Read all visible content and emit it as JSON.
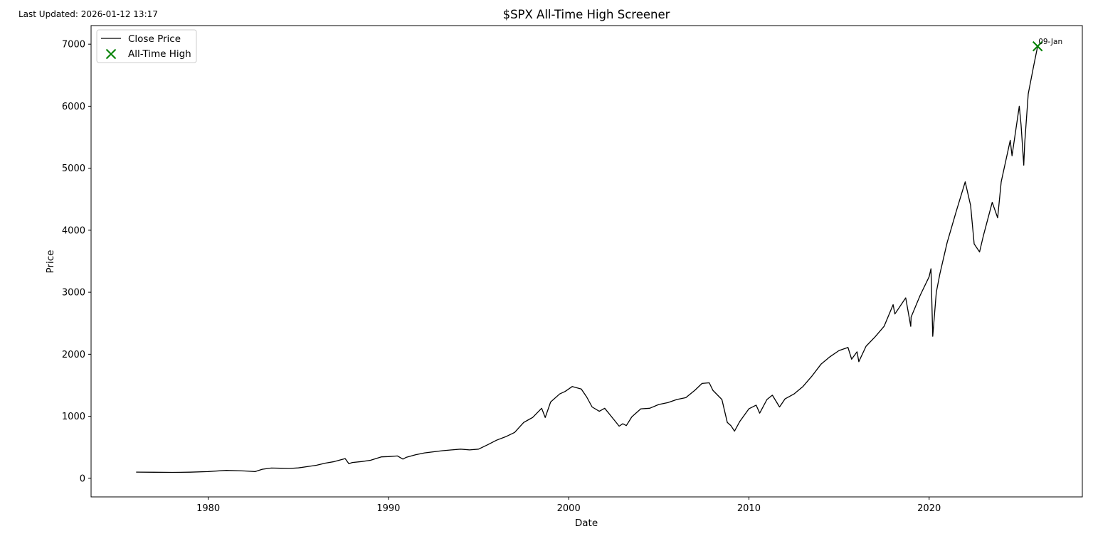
{
  "header": {
    "updated": "Last Updated: 2026-01-12 13:17"
  },
  "chart_data": {
    "type": "line",
    "title": "$SPX All-Time High Screener",
    "xlabel": "Date",
    "ylabel": "Price",
    "xlim": [
      1973.5,
      2028.5
    ],
    "ylim": [
      -300,
      7300
    ],
    "xticks": [
      1980,
      1990,
      2000,
      2010,
      2020
    ],
    "yticks": [
      0,
      1000,
      2000,
      3000,
      4000,
      5000,
      6000,
      7000
    ],
    "grid": false,
    "legend": {
      "placement": "upper-left",
      "entries": [
        {
          "label": "Close Price",
          "marker": "line",
          "color": "#000000"
        },
        {
          "label": "All-Time High",
          "marker": "x",
          "color": "#008000"
        }
      ]
    },
    "series": [
      {
        "name": "Close Price",
        "color": "#000000",
        "x": [
          1976.0,
          1977.0,
          1978.0,
          1979.0,
          1980.0,
          1981.0,
          1982.0,
          1982.6,
          1983.0,
          1983.5,
          1984.0,
          1984.5,
          1985.0,
          1985.5,
          1986.0,
          1986.5,
          1987.0,
          1987.6,
          1987.8,
          1988.0,
          1988.5,
          1989.0,
          1989.6,
          1990.0,
          1990.5,
          1990.8,
          1991.0,
          1991.5,
          1992.0,
          1993.0,
          1994.0,
          1994.5,
          1995.0,
          1995.5,
          1996.0,
          1996.5,
          1997.0,
          1997.5,
          1997.8,
          1998.0,
          1998.5,
          1998.7,
          1999.0,
          1999.5,
          1999.8,
          2000.0,
          2000.2,
          2000.7,
          2001.0,
          2001.3,
          2001.7,
          2002.0,
          2002.5,
          2002.8,
          2003.0,
          2003.2,
          2003.5,
          2004.0,
          2004.5,
          2005.0,
          2005.5,
          2006.0,
          2006.5,
          2007.0,
          2007.4,
          2007.8,
          2008.0,
          2008.5,
          2008.8,
          2009.0,
          2009.2,
          2009.5,
          2010.0,
          2010.4,
          2010.6,
          2011.0,
          2011.3,
          2011.7,
          2012.0,
          2012.5,
          2013.0,
          2013.5,
          2014.0,
          2014.5,
          2015.0,
          2015.5,
          2015.7,
          2016.0,
          2016.1,
          2016.5,
          2017.0,
          2017.5,
          2018.0,
          2018.1,
          2018.7,
          2018.98,
          2019.0,
          2019.5,
          2020.0,
          2020.1,
          2020.2,
          2020.4,
          2020.6,
          2021.0,
          2021.5,
          2022.0,
          2022.3,
          2022.5,
          2022.8,
          2023.0,
          2023.5,
          2023.8,
          2024.0,
          2024.5,
          2024.6,
          2025.0,
          2025.1,
          2025.25,
          2025.3,
          2025.5,
          2025.8,
          2026.02
        ],
        "y": [
          100,
          98,
          96,
          99,
          108,
          128,
          118,
          108,
          146,
          165,
          162,
          158,
          168,
          188,
          210,
          245,
          270,
          318,
          235,
          255,
          270,
          290,
          345,
          350,
          360,
          310,
          340,
          380,
          410,
          445,
          470,
          458,
          470,
          540,
          615,
          670,
          740,
          900,
          950,
          980,
          1130,
          980,
          1230,
          1360,
          1400,
          1440,
          1480,
          1440,
          1310,
          1150,
          1080,
          1130,
          950,
          840,
          880,
          850,
          990,
          1120,
          1130,
          1190,
          1220,
          1270,
          1300,
          1420,
          1530,
          1540,
          1420,
          1270,
          900,
          850,
          760,
          920,
          1120,
          1180,
          1050,
          1270,
          1340,
          1150,
          1280,
          1360,
          1480,
          1650,
          1840,
          1960,
          2060,
          2110,
          1920,
          2040,
          1880,
          2130,
          2280,
          2450,
          2800,
          2650,
          2910,
          2450,
          2600,
          2950,
          3250,
          3380,
          2290,
          3000,
          3300,
          3800,
          4300,
          4780,
          4400,
          3780,
          3650,
          3900,
          4450,
          4200,
          4780,
          5450,
          5200,
          6000,
          5700,
          5050,
          5400,
          6200,
          6650,
          6966
        ]
      }
    ],
    "annotations": [
      {
        "x": 2026.02,
        "y": 6966,
        "label": "09-Jan",
        "color": "#008000",
        "marker": "x"
      }
    ]
  }
}
